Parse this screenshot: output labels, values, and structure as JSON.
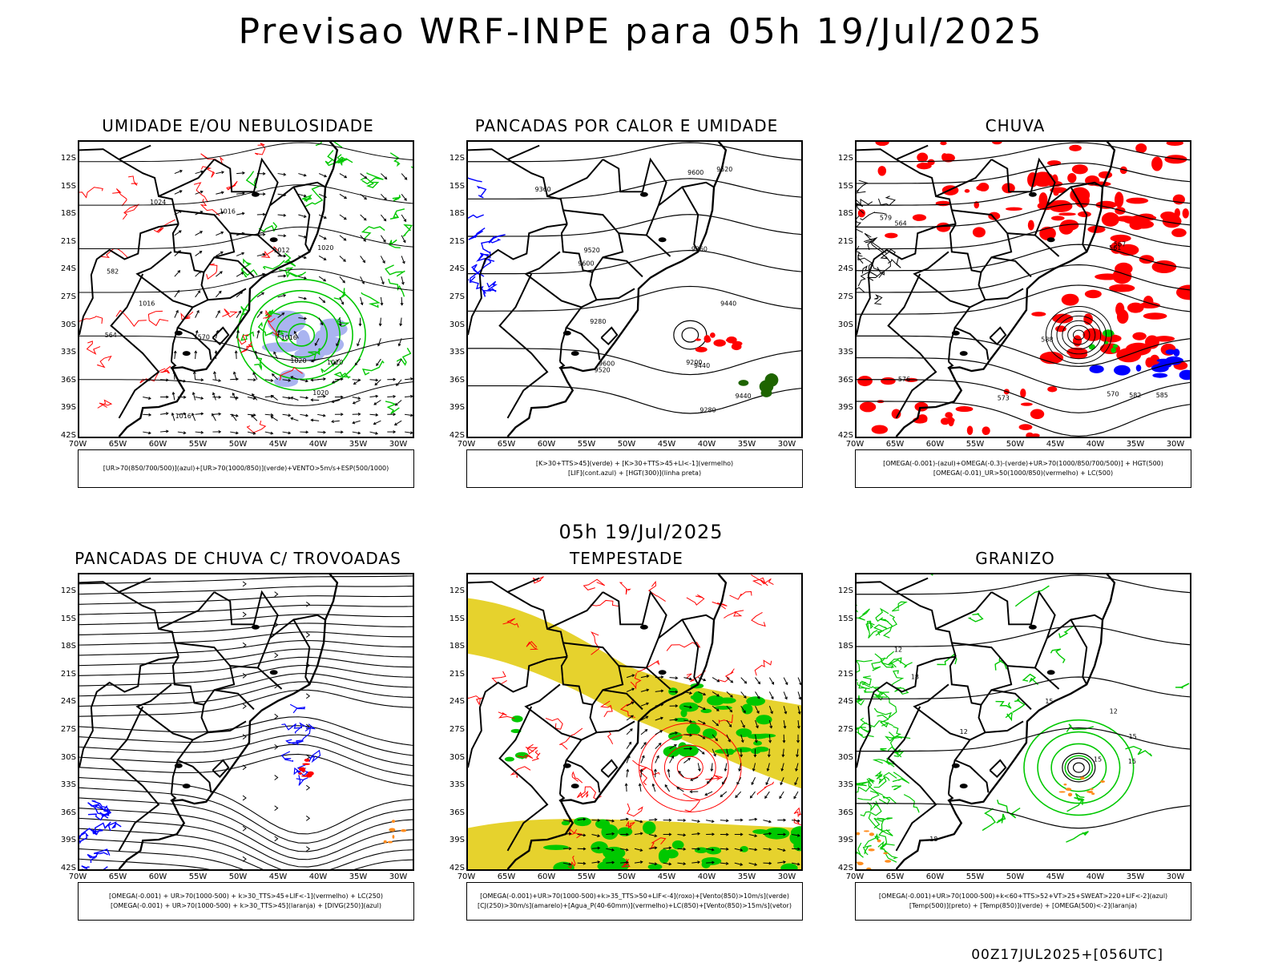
{
  "title": "Previsao WRF-INPE  para 05h 19/Jul/2025",
  "subtitle_date": "05h 19/Jul/2025",
  "footer": "00Z17JUL2025+[056UTC]",
  "lat_labels": [
    "12S",
    "15S",
    "18S",
    "21S",
    "24S",
    "27S",
    "30S",
    "33S",
    "36S",
    "39S",
    "42S"
  ],
  "lon_labels": [
    "70W",
    "65W",
    "60W",
    "55W",
    "50W",
    "45W",
    "40W",
    "35W",
    "30W"
  ],
  "colors": {
    "red": "#ff0000",
    "green": "#00c800",
    "blue": "#0000ff",
    "yellow": "#e6d22d",
    "darkgreen": "#1e6400",
    "orange": "#ff8c1e",
    "violet": "#aab4f0"
  },
  "panels": [
    {
      "title": "UMIDADE E/OU NEBULOSIDADE",
      "legend": [
        "[UR>70(850/700/500)](azul)+[UR>70(1000/850)](verde)+VENTO>5m/s+ESP(500/1000)"
      ],
      "labels": [
        "1016",
        "1020",
        "1020",
        "1020",
        "1024",
        "1016",
        "1020",
        "1016",
        "1012",
        "1016",
        "570",
        "564",
        "582"
      ]
    },
    {
      "title": "PANCADAS POR CALOR E UMIDADE",
      "legend": [
        "[K>30+TTS>45](verde) + [K>30+TTS>45+LI<-1](vermelho)",
        "[LIF](cont.azul) + [HGT(300)](linha preta)"
      ],
      "labels": [
        "9600",
        "9600",
        "9600",
        "9520",
        "9520",
        "9440",
        "9440",
        "9360",
        "9360",
        "9280",
        "9280",
        "9200",
        "9520",
        "9440"
      ]
    },
    {
      "title": "CHUVA",
      "legend": [
        "[OMEGA(-0.001)-(azul)+OMEGA(-0.3)-(verde)+UR>70(1000/850/700/500)] + HGT(500)",
        "[OMEGA(-0.01)_UR>50(1000/850)(vermelho) + LC(500)"
      ],
      "labels": [
        "585",
        "582",
        "579",
        "576",
        "573",
        "570",
        "567",
        "564",
        "561",
        "588"
      ]
    },
    {
      "title": "PANCADAS DE CHUVA C/ TROVOADAS",
      "legend": [
        "[OMEGA(-0.001) + UR>70(1000-500) + k>30_TTS>45+LIF<-1](vermelho) + LC(250)",
        "[OMEGA(-0.001) + UR>70(1000-500) + k>30_TTS>45](laranja) + [DIVG(250)](azul)"
      ],
      "labels": []
    },
    {
      "title": "TEMPESTADE",
      "legend": [
        "[OMEGA(-0.001)+UR>70(1000-500)+k>35_TTS>50+LIF<-4](roxo)+[Vento(850)>10m/s](verde)",
        "[CJ(250)>30m/s](amarelo)+[Agua_P(40-60mm)](vermelho)+LC(850)+[Vento(850)>15m/s](vetor)"
      ],
      "labels": []
    },
    {
      "title": "GRANIZO",
      "legend": [
        "[OMEGA(-0.001)+UR>70(1000-500)+k<60+TTS>52+VT>25+SWEAT>220+LIF<-2](azul)",
        "[Temp(500)](preto) + [Temp(850)](verde) + [OMEGA(500)<-2](laranja)"
      ],
      "labels": [
        "12",
        "15",
        "15",
        "18",
        "12",
        "12",
        "15",
        "15",
        "18"
      ]
    }
  ]
}
